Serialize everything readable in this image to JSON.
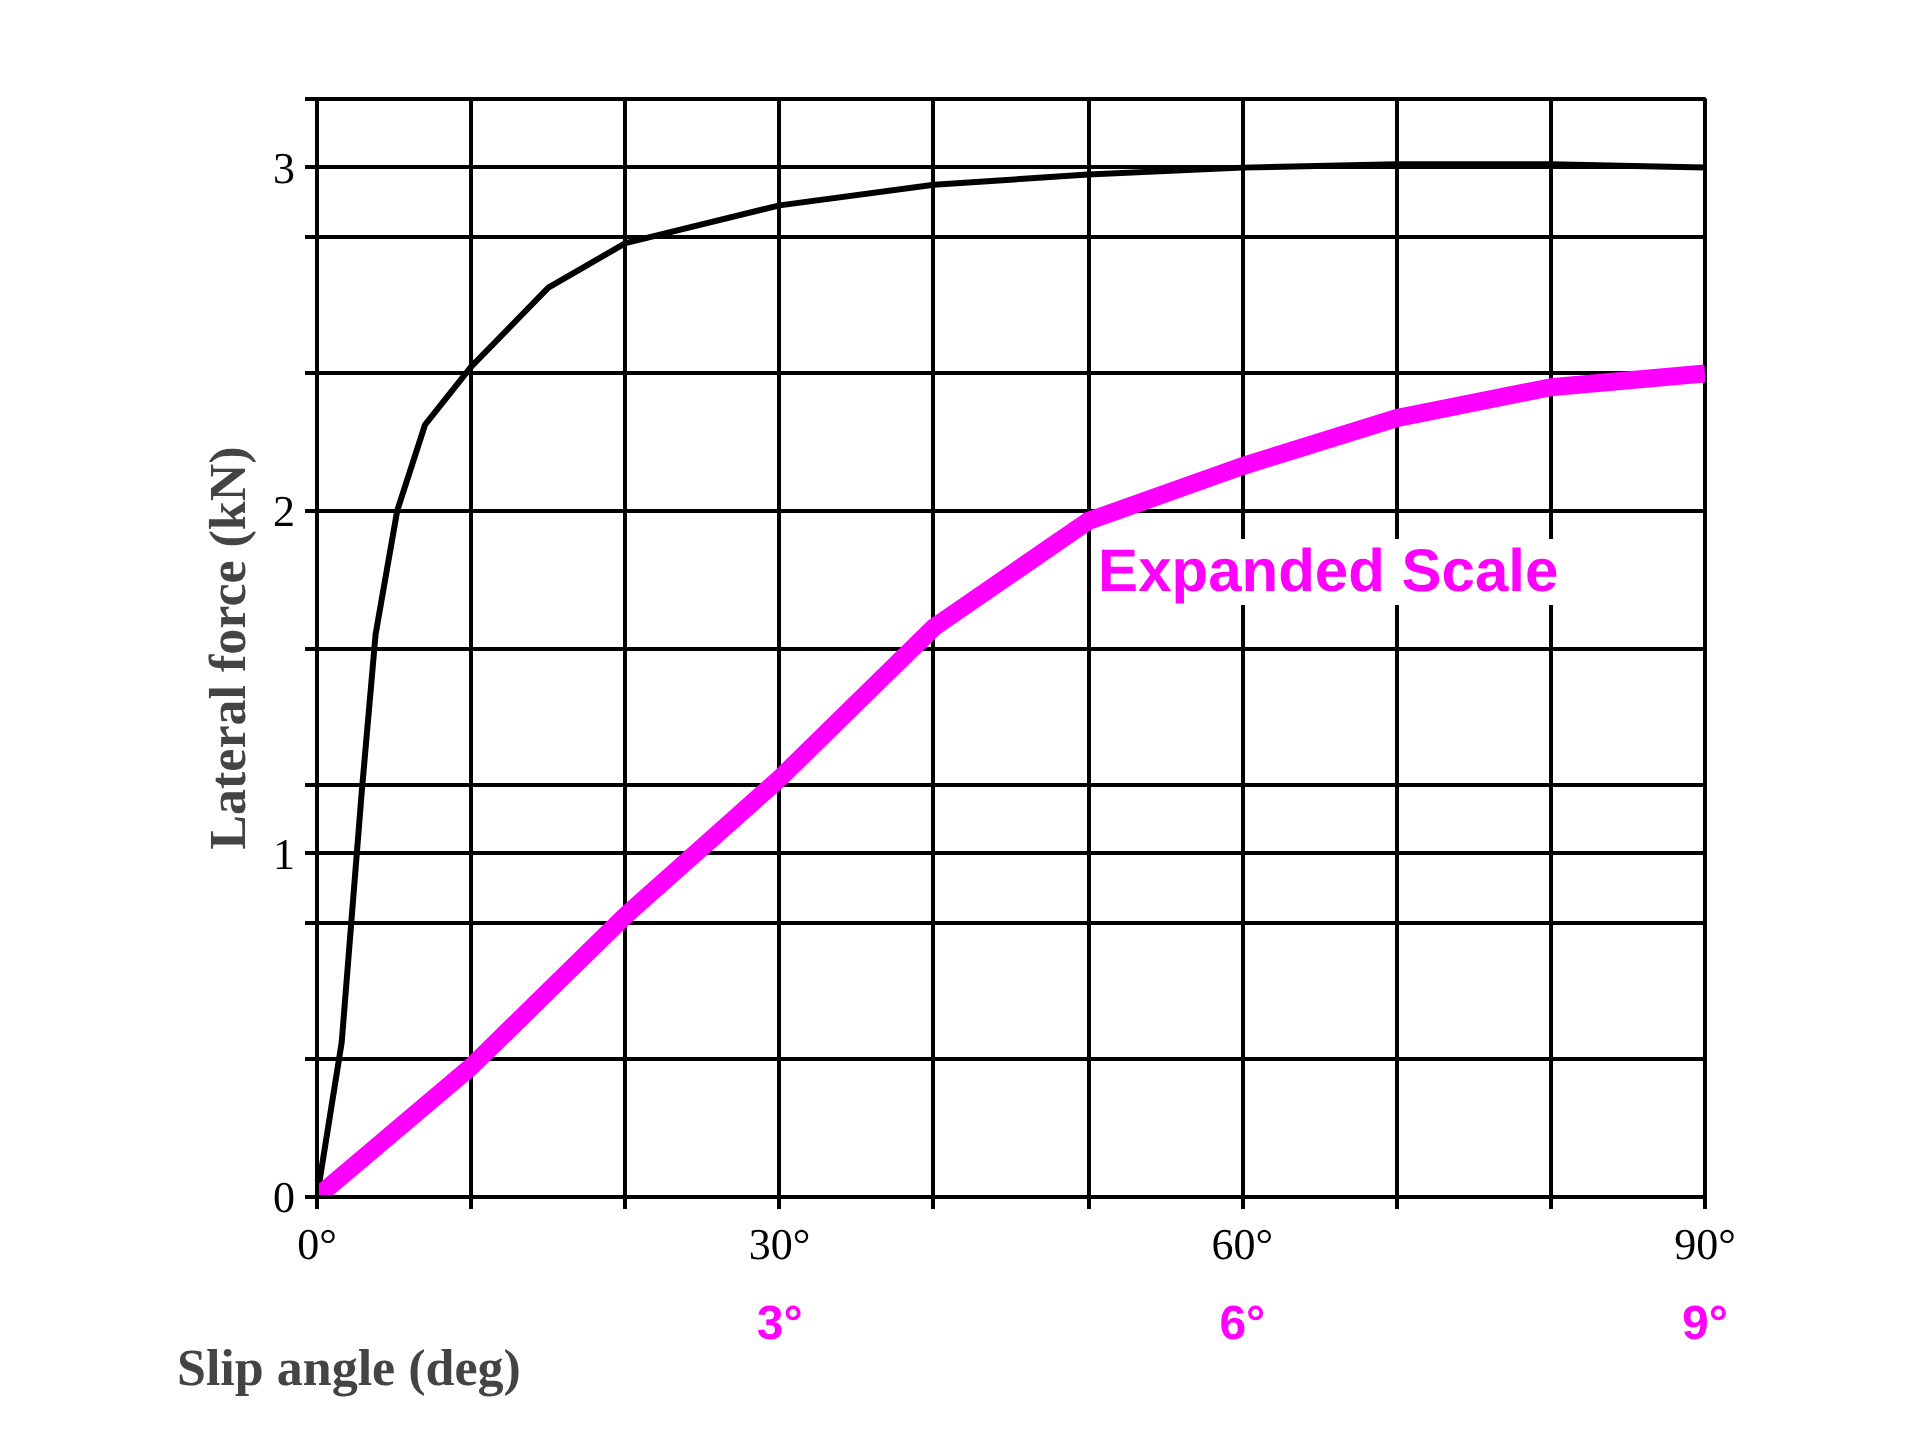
{
  "chart_data": {
    "type": "line",
    "xlabel": "Slip angle (deg)",
    "ylabel": "Lateral force (kN)",
    "xlim": [
      0,
      90
    ],
    "ylim": [
      0,
      3.2
    ],
    "xticks": [
      {
        "value": 0,
        "label": "0°"
      },
      {
        "value": 10,
        "label": null
      },
      {
        "value": 20,
        "label": null
      },
      {
        "value": 30,
        "label": "30°"
      },
      {
        "value": 40,
        "label": null
      },
      {
        "value": 50,
        "label": null
      },
      {
        "value": 60,
        "label": "60°"
      },
      {
        "value": 70,
        "label": null
      },
      {
        "value": 80,
        "label": null
      },
      {
        "value": 90,
        "label": "90°"
      }
    ],
    "yticks": [
      0,
      {
        "value": 0.4,
        "label": null
      },
      {
        "value": 0.8,
        "label": null
      },
      1,
      {
        "value": 1.2,
        "label": null
      },
      {
        "value": 1.6,
        "label": null
      },
      2,
      {
        "value": 2.4,
        "label": null
      },
      {
        "value": 2.8,
        "label": null
      },
      3,
      {
        "value": 3.2,
        "label": null
      }
    ],
    "x2lim": [
      0,
      9
    ],
    "x2ticks": [
      {
        "value": 3,
        "label": "3°"
      },
      {
        "value": 6,
        "label": "6°"
      },
      {
        "value": 9,
        "label": "9°"
      }
    ],
    "grid": true,
    "series": [
      {
        "color": "#000000",
        "x": [
          0,
          1.6,
          2.9,
          3.8,
          5.2,
          7,
          10,
          15,
          20,
          30,
          40,
          50,
          60,
          70,
          80,
          90
        ],
        "values": [
          0,
          0.45,
          1.18,
          1.64,
          2.0,
          2.25,
          2.42,
          2.65,
          2.78,
          2.89,
          2.95,
          2.98,
          3.0,
          3.01,
          3.01,
          3.0
        ]
      },
      {
        "name": "Expanded Scale",
        "color": "#ff00ff",
        "axis": "x2",
        "x": [
          0,
          1,
          2,
          3,
          4,
          5,
          6,
          7,
          8,
          9
        ],
        "values": [
          0,
          0.38,
          0.82,
          1.22,
          1.66,
          1.97,
          2.13,
          2.27,
          2.36,
          2.4
        ]
      }
    ]
  }
}
